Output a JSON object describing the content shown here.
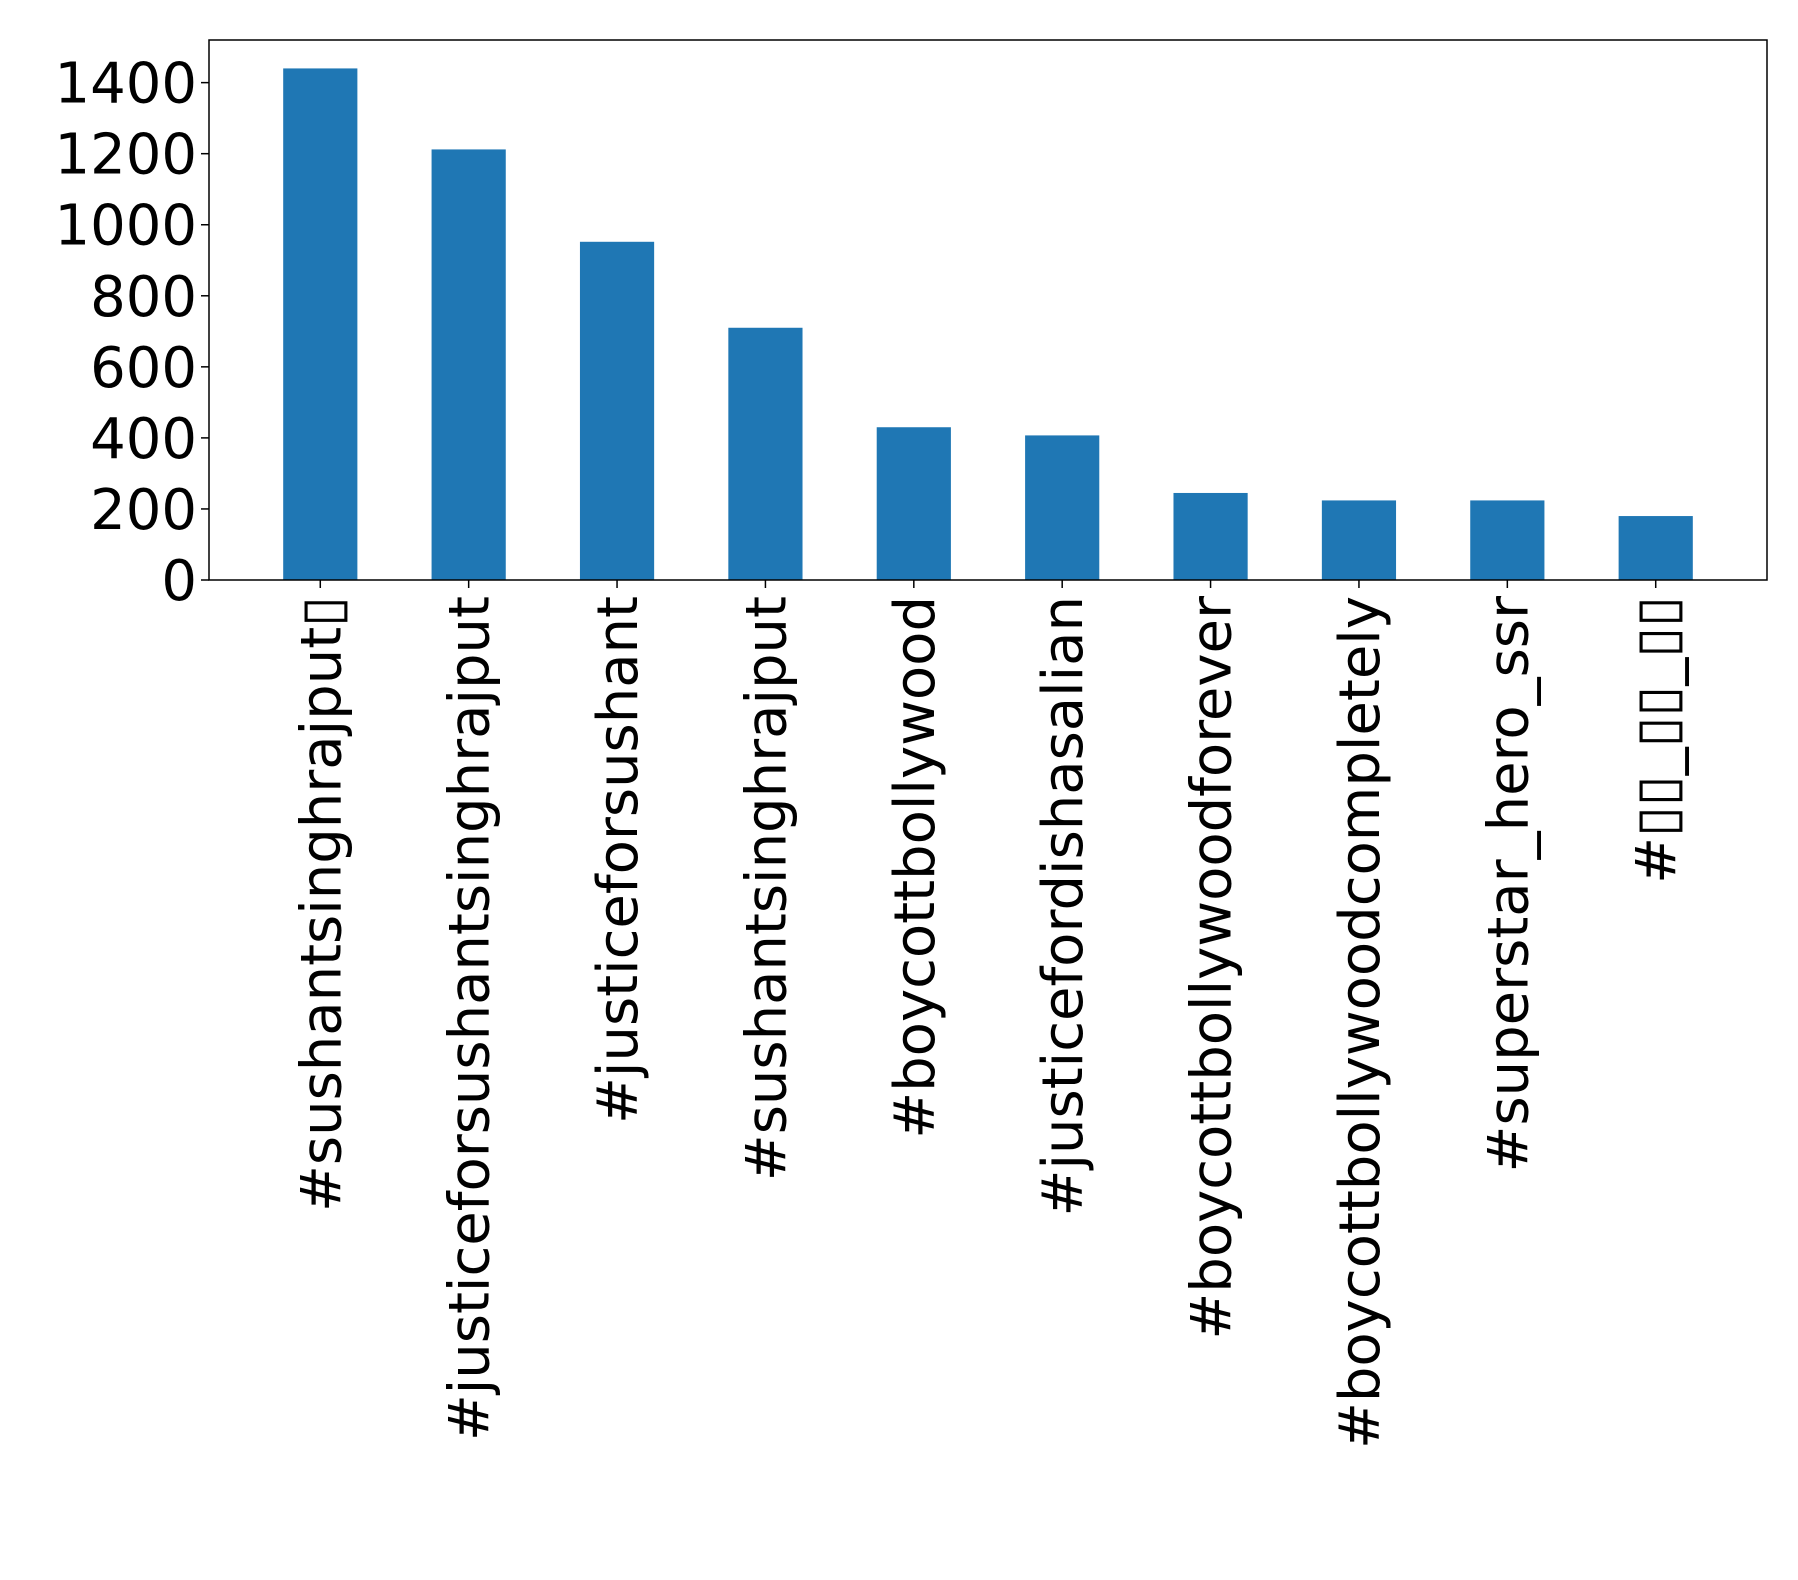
{
  "chart_data": {
    "type": "bar",
    "title": "",
    "xlabel": "",
    "ylabel": "",
    "categories": [
      "#sushantsinghrajput▯",
      "#justiceforsushantsinghrajput",
      "#justiceforsushant",
      "#sushantsinghrajput",
      "#boycottbollywood",
      "#justicefordishasalian",
      "#boycottbollywoodforever",
      "#boycottbollywoodcompletely",
      "#superstar_hero_ssr",
      "#▯▯_▯▯_▯▯"
    ],
    "values": [
      1440,
      1212,
      952,
      710,
      430,
      407,
      245,
      224,
      224,
      180
    ],
    "ylim": [
      0,
      1520
    ],
    "yticks": [
      0,
      200,
      400,
      600,
      800,
      1000,
      1200,
      1400
    ],
    "grid": false,
    "legend": "none",
    "bar_color": "#1f77b4"
  }
}
